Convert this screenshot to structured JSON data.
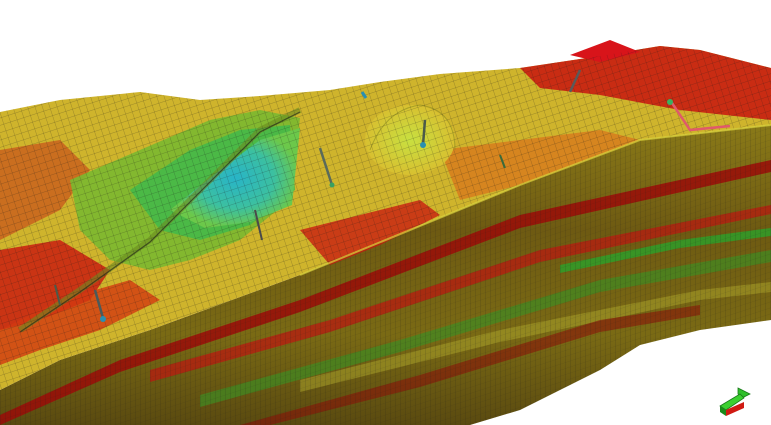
{
  "viewer": {
    "background": "#ffffff",
    "palette": {
      "red": "#c8140f",
      "dark_red": "#8a0d08",
      "orange": "#d9731a",
      "yellow": "#d8d23a",
      "olive": "#8a8a1e",
      "green": "#4cb83a",
      "cyan": "#2bb6c8",
      "mesh_line": "#1a1a1a"
    },
    "orientation_icon": "axis-triad-icon",
    "well_icon": "well-trajectory-icon"
  }
}
